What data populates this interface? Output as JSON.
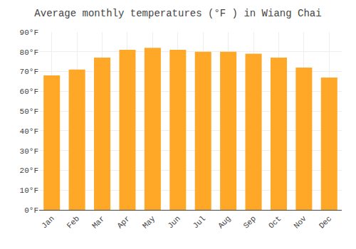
{
  "chart_data": {
    "type": "bar",
    "title": "Average monthly temperatures (°F ) in Wiang Chai",
    "categories": [
      "Jan",
      "Feb",
      "Mar",
      "Apr",
      "May",
      "Jun",
      "Jul",
      "Aug",
      "Sep",
      "Oct",
      "Nov",
      "Dec"
    ],
    "values": [
      68,
      71,
      77,
      81,
      82,
      81,
      80,
      80,
      79,
      77,
      72,
      67
    ],
    "color": "#FFA726",
    "ylim": [
      0,
      90
    ],
    "yticks": [
      {
        "value": 0,
        "label": "0°F"
      },
      {
        "value": 10,
        "label": "10°F"
      },
      {
        "value": 20,
        "label": "20°F"
      },
      {
        "value": 30,
        "label": "30°F"
      },
      {
        "value": 40,
        "label": "40°F"
      },
      {
        "value": 50,
        "label": "50°F"
      },
      {
        "value": 60,
        "label": "60°F"
      },
      {
        "value": 70,
        "label": "70°F"
      },
      {
        "value": 80,
        "label": "80°F"
      },
      {
        "value": 90,
        "label": "90°F"
      }
    ],
    "grid": true
  }
}
